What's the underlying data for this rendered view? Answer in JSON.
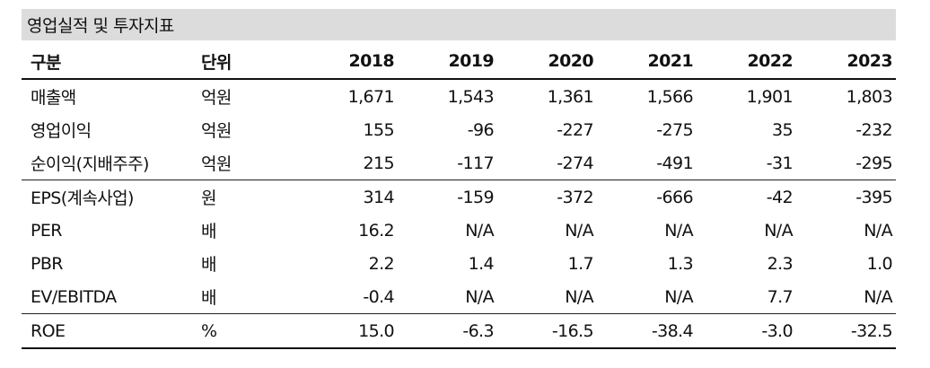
{
  "title": "영업실적 및 투자지표",
  "header": {
    "item": "구분",
    "unit": "단위",
    "years": [
      "2018",
      "2019",
      "2020",
      "2021",
      "2022",
      "2023"
    ]
  },
  "rows": [
    {
      "label": "매출액",
      "unit": "억원",
      "values": [
        "1,671",
        "1,543",
        "1,361",
        "1,566",
        "1,901",
        "1,803"
      ]
    },
    {
      "label": "영업이익",
      "unit": "억원",
      "values": [
        "155",
        "-96",
        "-227",
        "-275",
        "35",
        "-232"
      ]
    },
    {
      "label": "순이익(지배주주)",
      "unit": "억원",
      "values": [
        "215",
        "-117",
        "-274",
        "-491",
        "-31",
        "-295"
      ]
    },
    {
      "label": "EPS(계속사업)",
      "unit": "원",
      "values": [
        "314",
        "-159",
        "-372",
        "-666",
        "-42",
        "-395"
      ]
    },
    {
      "label": "PER",
      "unit": "배",
      "values": [
        "16.2",
        "N/A",
        "N/A",
        "N/A",
        "N/A",
        "N/A"
      ]
    },
    {
      "label": "PBR",
      "unit": "배",
      "values": [
        "2.2",
        "1.4",
        "1.7",
        "1.3",
        "2.3",
        "1.0"
      ]
    },
    {
      "label": "EV/EBITDA",
      "unit": "배",
      "values": [
        "-0.4",
        "N/A",
        "N/A",
        "N/A",
        "7.7",
        "N/A"
      ]
    },
    {
      "label": "ROE",
      "unit": "%",
      "values": [
        "15.0",
        "-6.3",
        "-16.5",
        "-38.4",
        "-3.0",
        "-32.5"
      ]
    }
  ]
}
